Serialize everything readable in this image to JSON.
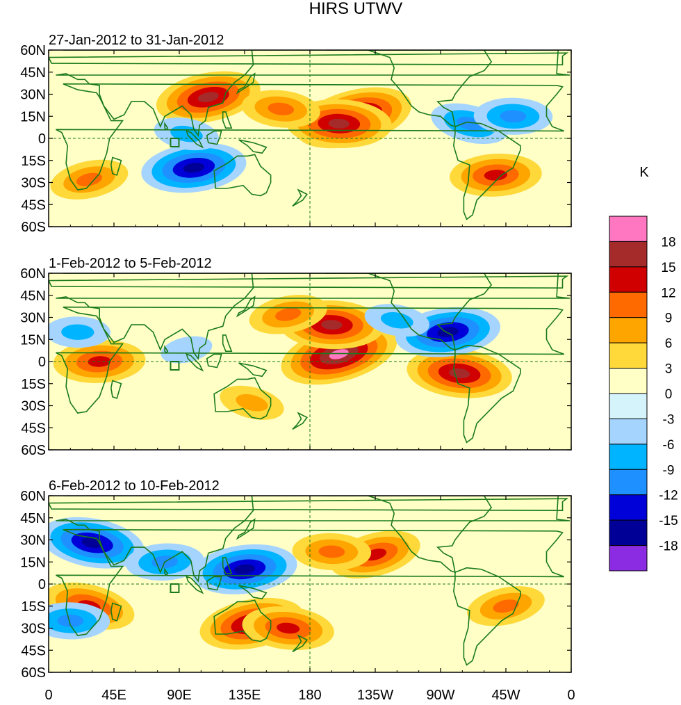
{
  "chart_data": {
    "type": "heatmap",
    "title": "HIRS UTWV",
    "units": "K",
    "x_tick_labels": [
      "0",
      "45E",
      "90E",
      "135E",
      "180",
      "135W",
      "90W",
      "45W",
      "0"
    ],
    "y_tick_labels": [
      "60N",
      "45N",
      "30N",
      "15N",
      "0",
      "15S",
      "30S",
      "45S",
      "60S"
    ],
    "xlim": [
      0,
      360
    ],
    "ylim": [
      -60,
      60
    ],
    "colorbar": {
      "levels": [
        "18",
        "15",
        "12",
        "9",
        "6",
        "3",
        "0",
        "-3",
        "-6",
        "-9",
        "-12",
        "-15",
        "-18"
      ],
      "colors": [
        "#ff77c0",
        "#a52a2a",
        "#d10000",
        "#ff6a00",
        "#ffa500",
        "#ffd93a",
        "#ffffc6",
        "#d4f3fb",
        "#a5d4ff",
        "#00b4ff",
        "#1e90ff",
        "#0000d8",
        "#000096",
        "#8b2be2"
      ]
    },
    "panels": [
      {
        "period": "27-Jan-2012 to 31-Jan-2012",
        "anomalies": [
          {
            "lon": 210,
            "lat": 14,
            "value": 18
          },
          {
            "lon": 200,
            "lat": 10,
            "value": 15
          },
          {
            "lon": 110,
            "lat": 28,
            "value": 15
          },
          {
            "lon": 160,
            "lat": 20,
            "value": 9
          },
          {
            "lon": 100,
            "lat": -20,
            "value": -15
          },
          {
            "lon": 95,
            "lat": 3,
            "value": -6
          },
          {
            "lon": 308,
            "lat": -25,
            "value": 12
          },
          {
            "lon": 290,
            "lat": 10,
            "value": -9
          },
          {
            "lon": 320,
            "lat": 15,
            "value": -9
          },
          {
            "lon": 28,
            "lat": -28,
            "value": 9
          }
        ]
      },
      {
        "period": "1-Feb-2012 to 5-Feb-2012",
        "anomalies": [
          {
            "lon": 200,
            "lat": 5,
            "value": 18
          },
          {
            "lon": 195,
            "lat": 25,
            "value": 15
          },
          {
            "lon": 165,
            "lat": 32,
            "value": 9
          },
          {
            "lon": 283,
            "lat": -8,
            "value": 15
          },
          {
            "lon": 275,
            "lat": 20,
            "value": -15
          },
          {
            "lon": 240,
            "lat": 28,
            "value": -6
          },
          {
            "lon": 35,
            "lat": 0,
            "value": 12
          },
          {
            "lon": 140,
            "lat": -28,
            "value": 6
          },
          {
            "lon": 20,
            "lat": 20,
            "value": -6
          },
          {
            "lon": 95,
            "lat": 8,
            "value": -3
          }
        ]
      },
      {
        "period": "6-Feb-2012 to 10-Feb-2012",
        "anomalies": [
          {
            "lon": 225,
            "lat": 20,
            "value": 12
          },
          {
            "lon": 195,
            "lat": 22,
            "value": 9
          },
          {
            "lon": 140,
            "lat": -27,
            "value": 15
          },
          {
            "lon": 165,
            "lat": -30,
            "value": 12
          },
          {
            "lon": 135,
            "lat": 10,
            "value": -15
          },
          {
            "lon": 30,
            "lat": 28,
            "value": -15
          },
          {
            "lon": 80,
            "lat": 15,
            "value": -9
          },
          {
            "lon": 28,
            "lat": -15,
            "value": 12
          },
          {
            "lon": 15,
            "lat": -25,
            "value": -9
          },
          {
            "lon": 315,
            "lat": -15,
            "value": 9
          }
        ]
      }
    ]
  }
}
